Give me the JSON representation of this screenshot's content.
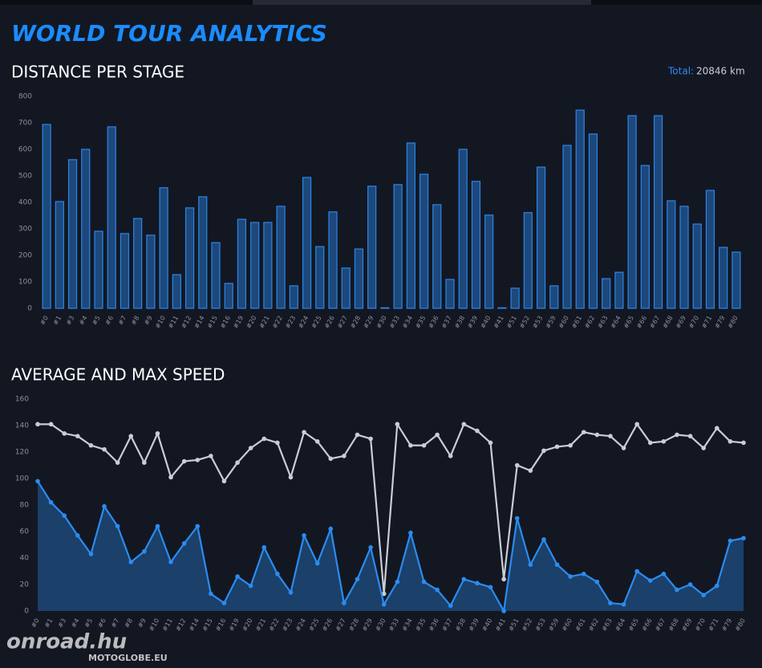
{
  "header": {
    "title": "WORLD TOUR ANALYTICS",
    "total_label": "Total:",
    "total_value": "20846 km",
    "watermark": [
      "onroad.hu",
      "MOTOGLOBE.EU"
    ]
  },
  "chart_data": [
    {
      "type": "bar",
      "title": "DISTANCE PER STAGE",
      "color": "#2a86e8",
      "categories": [
        "#0",
        "#1",
        "#3",
        "#4",
        "#5",
        "#6",
        "#7",
        "#8",
        "#9",
        "#10",
        "#11",
        "#12",
        "#14",
        "#15",
        "#16",
        "#19",
        "#20",
        "#21",
        "#22",
        "#23",
        "#24",
        "#25",
        "#26",
        "#27",
        "#28",
        "#29",
        "#30",
        "#33",
        "#34",
        "#35",
        "#36",
        "#37",
        "#38",
        "#39",
        "#40",
        "#41",
        "#51",
        "#52",
        "#53",
        "#59",
        "#60",
        "#61",
        "#62",
        "#63",
        "#64",
        "#65",
        "#66",
        "#67",
        "#68",
        "#69",
        "#70",
        "#71",
        "#79",
        "#80"
      ],
      "values": [
        694,
        403,
        561,
        600,
        291,
        685,
        282,
        339,
        276,
        455,
        127,
        379,
        421,
        248,
        94,
        336,
        324,
        324,
        385,
        85,
        494,
        233,
        364,
        152,
        224,
        461,
        2,
        467,
        624,
        506,
        391,
        109,
        600,
        479,
        352,
        2,
        76,
        361,
        533,
        85,
        615,
        748,
        658,
        112,
        136,
        727,
        539,
        727,
        406,
        385,
        318,
        445,
        230,
        212
      ],
      "ylim": [
        0,
        800
      ],
      "yticks": [
        0,
        100,
        200,
        300,
        400,
        500,
        600,
        700,
        800
      ],
      "grid": false
    },
    {
      "type": "line",
      "title": "AVERAGE AND MAX SPEED",
      "categories": [
        "#0",
        "#1",
        "#3",
        "#4",
        "#5",
        "#6",
        "#7",
        "#8",
        "#9",
        "#10",
        "#11",
        "#12",
        "#14",
        "#15",
        "#16",
        "#19",
        "#20",
        "#21",
        "#22",
        "#23",
        "#24",
        "#25",
        "#26",
        "#27",
        "#28",
        "#29",
        "#30",
        "#33",
        "#34",
        "#35",
        "#36",
        "#37",
        "#38",
        "#39",
        "#40",
        "#41",
        "#51",
        "#52",
        "#53",
        "#59",
        "#60",
        "#61",
        "#62",
        "#63",
        "#64",
        "#65",
        "#66",
        "#67",
        "#68",
        "#69",
        "#70",
        "#71",
        "#79",
        "#80"
      ],
      "series": [
        {
          "color": "#c8cdd6",
          "values": [
            141,
            141,
            134,
            132,
            125,
            122,
            112,
            132,
            112,
            134,
            101,
            113,
            114,
            117,
            98,
            112,
            123,
            130,
            127,
            101,
            135,
            128,
            115,
            117,
            133,
            130,
            13,
            141,
            125,
            125,
            133,
            117,
            141,
            136,
            127,
            24,
            110,
            106,
            121,
            124,
            125,
            135,
            133,
            132,
            123,
            141,
            127,
            128,
            133,
            132,
            123,
            138,
            128,
            127
          ]
        },
        {
          "color": "#2a8cf0",
          "area": true,
          "values": [
            98,
            82,
            72,
            57,
            43,
            79,
            64,
            37,
            45,
            64,
            37,
            51,
            64,
            13,
            6,
            26,
            19,
            48,
            28,
            14,
            57,
            36,
            62,
            6,
            24,
            48,
            5,
            22,
            59,
            22,
            16,
            4,
            24,
            21,
            18,
            0,
            70,
            35,
            54,
            35,
            26,
            28,
            22,
            6,
            5,
            30,
            23,
            28,
            16,
            20,
            12,
            19,
            53,
            55
          ]
        }
      ],
      "ylim": [
        0,
        160
      ],
      "yticks": [
        0,
        20,
        40,
        60,
        80,
        100,
        120,
        140,
        160
      ],
      "grid": false
    }
  ]
}
